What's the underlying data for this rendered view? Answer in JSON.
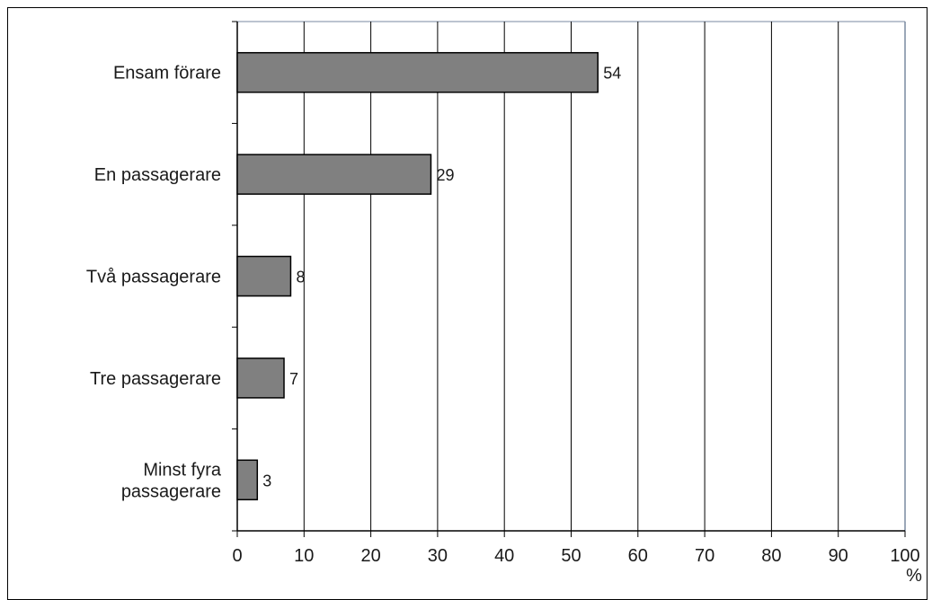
{
  "chart_data": {
    "type": "bar",
    "orientation": "horizontal",
    "categories": [
      [
        "Ensam förare"
      ],
      [
        "En passagerare"
      ],
      [
        "Två passagerare"
      ],
      [
        "Tre passagerare"
      ],
      [
        "Minst fyra",
        "passagerare"
      ]
    ],
    "values": [
      54,
      29,
      8,
      7,
      3
    ],
    "data_labels": [
      "54",
      "29",
      "8",
      "7",
      "3"
    ],
    "xlim": [
      0,
      100
    ],
    "xticks": [
      0,
      10,
      20,
      30,
      40,
      50,
      60,
      70,
      80,
      90,
      100
    ],
    "xtick_labels": [
      "0",
      "10",
      "20",
      "30",
      "40",
      "50",
      "60",
      "70",
      "80",
      "90",
      "100"
    ],
    "xunit": "%",
    "grid": "vertical",
    "bar_color": "#808080",
    "grid_color": "#000000"
  }
}
